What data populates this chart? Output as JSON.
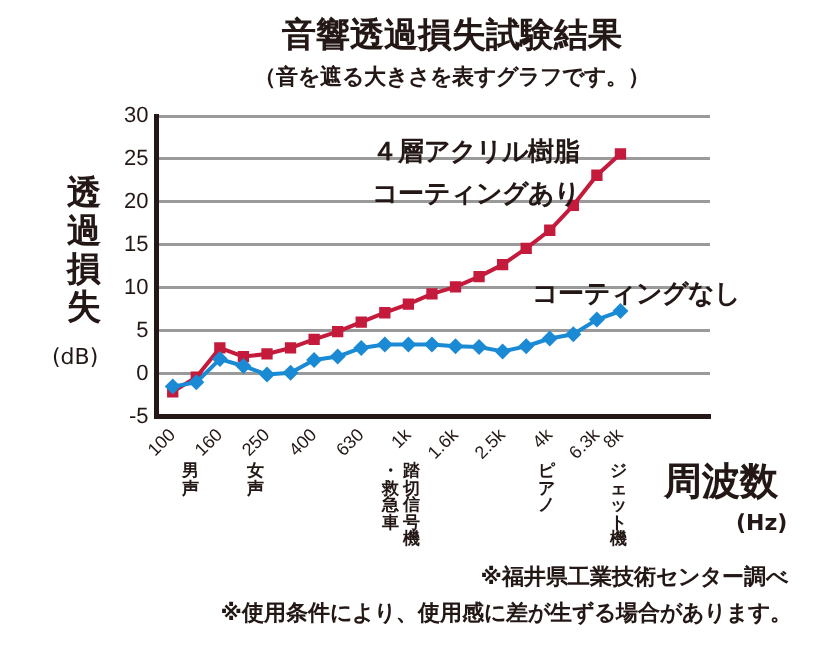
{
  "chart_data": {
    "type": "line",
    "title": "音響透過損失試験結果",
    "subtitle": "（音を遮る大きさを表すグラフです。）",
    "ylabel": "透過損失\n(dB)",
    "xlabel": "周波数\n(Hz)",
    "categories": [
      "100",
      null,
      "160",
      null,
      "250",
      null,
      "400",
      null,
      "630",
      null,
      "1k",
      null,
      "1.6k",
      null,
      "2.5k",
      null,
      "4k",
      null,
      "6.3k",
      "8k"
    ],
    "series": [
      {
        "name": "４層アクリル樹脂コーティングあり",
        "color": "#c41a3c",
        "marker": "square",
        "values": [
          -2.1,
          -0.4,
          3.0,
          2.0,
          2.3,
          3.0,
          4.0,
          4.9,
          6.0,
          7.1,
          8.1,
          9.3,
          10.1,
          11.3,
          12.7,
          14.6,
          16.7,
          19.6,
          23.1,
          25.6
        ]
      },
      {
        "name": "コーティングなし",
        "color": "#1a8ad4",
        "marker": "diamond",
        "values": [
          -1.5,
          -1.0,
          1.7,
          0.9,
          -0.1,
          0.1,
          1.6,
          2.0,
          3.0,
          3.4,
          3.4,
          3.4,
          3.2,
          3.1,
          2.6,
          3.2,
          4.1,
          4.6,
          6.3,
          7.3
        ]
      }
    ],
    "ylim": [
      -5,
      30
    ],
    "yticks": [
      -5,
      0,
      5,
      10,
      15,
      20,
      25,
      30
    ],
    "grid": "y",
    "legend": false,
    "annotations": [
      "男声",
      "女声",
      "踏切信号機",
      "・救急車",
      "ピアノ",
      "ジェット機",
      "※福井県工業技術センター調べ",
      "※使用条件により、使用感に差が生ずる場合があります。"
    ]
  }
}
